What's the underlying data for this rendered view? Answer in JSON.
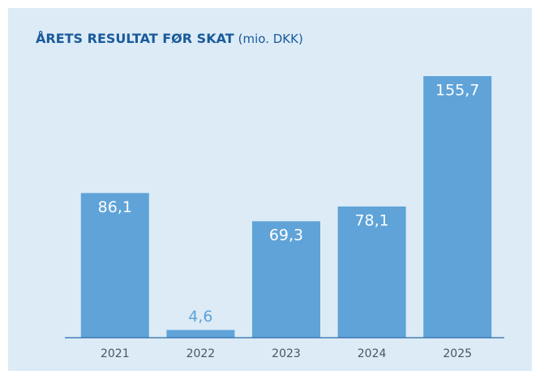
{
  "chart_data": {
    "type": "bar",
    "title": "ÅRETS RESULTAT FØR SKAT",
    "subtitle": "(mio. DKK)",
    "categories": [
      "2021",
      "2022",
      "2023",
      "2024",
      "2025"
    ],
    "values": [
      86.1,
      4.6,
      69.3,
      78.1,
      155.7
    ],
    "value_labels": [
      "86,1",
      "4,6",
      "69,3",
      "78,1",
      "155,7"
    ],
    "color": "#5fa3d8"
  }
}
